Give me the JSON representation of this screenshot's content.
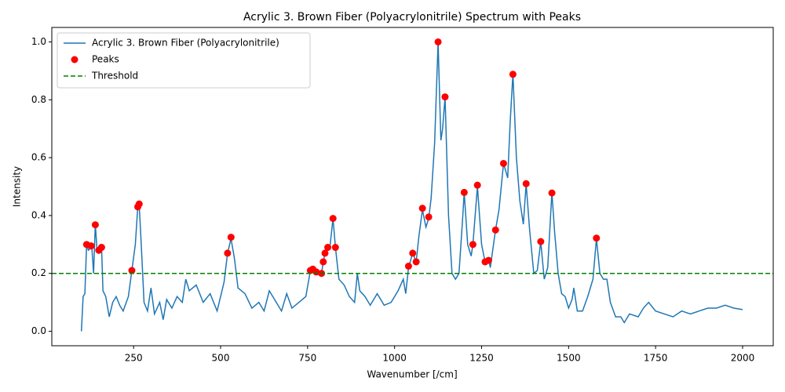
{
  "chart_data": {
    "type": "line",
    "title": "Acrylic 3. Brown Fiber (Polyacrylonitrile) Spectrum with Peaks",
    "x_label": "Wavenumber [/cm]",
    "y_label": "Intensity",
    "xlim": [
      15,
      2088
    ],
    "ylim": [
      -0.05,
      1.05
    ],
    "xticks": [
      250,
      500,
      750,
      1000,
      1250,
      1500,
      1750,
      2000
    ],
    "yticks": [
      {
        "value": 0,
        "label": "0.0"
      },
      {
        "value": 0.2,
        "label": "0.2"
      },
      {
        "value": 0.4,
        "label": "0.4"
      },
      {
        "value": 0.6,
        "label": "0.6"
      },
      {
        "value": 0.8,
        "label": "0.8"
      },
      {
        "value": 1,
        "label": "1.0"
      }
    ],
    "grid": false,
    "legend": "upper left",
    "series": [
      {
        "name": "Acrylic 3. Brown Fiber (Polyacrylonitrile)",
        "kind": "line",
        "color": "#1f77b4",
        "x": [
          100,
          105,
          110,
          115,
          120,
          130,
          135,
          140,
          145,
          150,
          158,
          162,
          170,
          180,
          190,
          200,
          210,
          220,
          235,
          245,
          255,
          262,
          266,
          272,
          280,
          290,
          300,
          310,
          325,
          335,
          345,
          360,
          375,
          390,
          400,
          410,
          430,
          450,
          470,
          490,
          510,
          520,
          530,
          540,
          550,
          570,
          590,
          610,
          625,
          640,
          660,
          675,
          690,
          705,
          725,
          745,
          758,
          765,
          770,
          780,
          790,
          795,
          800,
          808,
          815,
          823,
          830,
          840,
          855,
          870,
          885,
          893,
          900,
          915,
          930,
          950,
          970,
          990,
          1010,
          1025,
          1032,
          1040,
          1052,
          1062,
          1070,
          1080,
          1090,
          1098,
          1105,
          1115,
          1125,
          1133,
          1138,
          1145,
          1155,
          1165,
          1175,
          1185,
          1195,
          1200,
          1210,
          1220,
          1225,
          1238,
          1250,
          1260,
          1270,
          1275,
          1290,
          1300,
          1313,
          1325,
          1332,
          1340,
          1350,
          1360,
          1370,
          1378,
          1388,
          1400,
          1410,
          1420,
          1430,
          1440,
          1452,
          1460,
          1470,
          1480,
          1490,
          1500,
          1510,
          1515,
          1525,
          1540,
          1555,
          1570,
          1580,
          1590,
          1600,
          1610,
          1620,
          1635,
          1650,
          1660,
          1675,
          1700,
          1715,
          1730,
          1750,
          1775,
          1800,
          1825,
          1850,
          1875,
          1900,
          1925,
          1950,
          1975,
          2000
        ],
        "values": [
          0.0,
          0.12,
          0.13,
          0.3,
          0.28,
          0.29,
          0.2,
          0.37,
          0.28,
          0.27,
          0.29,
          0.14,
          0.12,
          0.05,
          0.1,
          0.12,
          0.09,
          0.07,
          0.12,
          0.21,
          0.3,
          0.43,
          0.44,
          0.3,
          0.1,
          0.07,
          0.15,
          0.06,
          0.1,
          0.04,
          0.11,
          0.08,
          0.12,
          0.1,
          0.18,
          0.14,
          0.16,
          0.1,
          0.13,
          0.07,
          0.17,
          0.27,
          0.32,
          0.25,
          0.15,
          0.13,
          0.08,
          0.1,
          0.07,
          0.14,
          0.1,
          0.07,
          0.13,
          0.08,
          0.1,
          0.12,
          0.21,
          0.21,
          0.2,
          0.2,
          0.2,
          0.24,
          0.27,
          0.29,
          0.3,
          0.39,
          0.29,
          0.18,
          0.16,
          0.12,
          0.1,
          0.2,
          0.14,
          0.12,
          0.09,
          0.13,
          0.09,
          0.1,
          0.14,
          0.18,
          0.13,
          0.22,
          0.27,
          0.24,
          0.33,
          0.42,
          0.36,
          0.39,
          0.46,
          0.65,
          1.0,
          0.66,
          0.7,
          0.81,
          0.4,
          0.2,
          0.18,
          0.2,
          0.38,
          0.48,
          0.3,
          0.26,
          0.3,
          0.5,
          0.3,
          0.24,
          0.25,
          0.22,
          0.35,
          0.42,
          0.58,
          0.53,
          0.72,
          0.89,
          0.6,
          0.45,
          0.37,
          0.51,
          0.35,
          0.2,
          0.21,
          0.31,
          0.18,
          0.22,
          0.48,
          0.34,
          0.2,
          0.13,
          0.12,
          0.08,
          0.11,
          0.15,
          0.07,
          0.07,
          0.12,
          0.18,
          0.32,
          0.2,
          0.18,
          0.18,
          0.1,
          0.05,
          0.05,
          0.03,
          0.06,
          0.05,
          0.08,
          0.1,
          0.07,
          0.06,
          0.05,
          0.07,
          0.06,
          0.07,
          0.08,
          0.08,
          0.09,
          0.08,
          0.075
        ]
      },
      {
        "name": "Peaks",
        "kind": "scatter",
        "color": "red",
        "x": [
          115,
          128,
          140,
          150,
          158,
          245,
          262,
          266,
          520,
          530,
          758,
          765,
          775,
          790,
          795,
          800,
          808,
          823,
          830,
          1040,
          1052,
          1062,
          1080,
          1098,
          1125,
          1145,
          1200,
          1225,
          1238,
          1260,
          1270,
          1290,
          1313,
          1340,
          1378,
          1420,
          1452,
          1580
        ],
        "values": [
          0.3,
          0.295,
          0.368,
          0.28,
          0.29,
          0.21,
          0.43,
          0.44,
          0.27,
          0.325,
          0.21,
          0.215,
          0.205,
          0.2,
          0.24,
          0.27,
          0.29,
          0.39,
          0.29,
          0.225,
          0.27,
          0.24,
          0.425,
          0.395,
          1.0,
          0.81,
          0.48,
          0.3,
          0.505,
          0.24,
          0.245,
          0.35,
          0.58,
          0.888,
          0.51,
          0.31,
          0.478,
          0.322
        ]
      }
    ],
    "threshold": {
      "name": "Threshold",
      "value": 0.2,
      "color": "green",
      "style": "dashed"
    }
  }
}
